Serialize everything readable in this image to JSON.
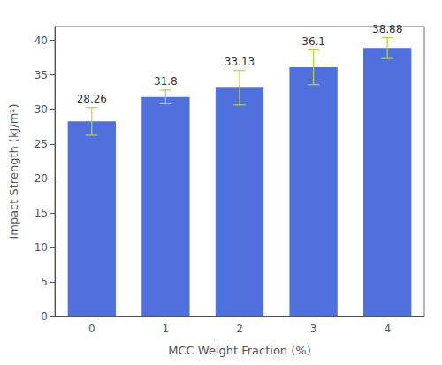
{
  "chart_data": {
    "type": "bar",
    "xlabel": "MCC Weight Fraction (%)",
    "ylabel": "Impact Strength (kJ/m²)",
    "categories": [
      "0",
      "1",
      "2",
      "3",
      "4"
    ],
    "values": [
      28.26,
      31.8,
      33.13,
      36.1,
      38.88
    ],
    "errors": [
      2.0,
      1.0,
      2.5,
      2.5,
      1.5
    ],
    "ylim": [
      0,
      42
    ],
    "yticks": [
      0,
      5,
      10,
      15,
      20,
      25,
      30,
      35,
      40
    ],
    "grid": false,
    "data_labels": true
  }
}
